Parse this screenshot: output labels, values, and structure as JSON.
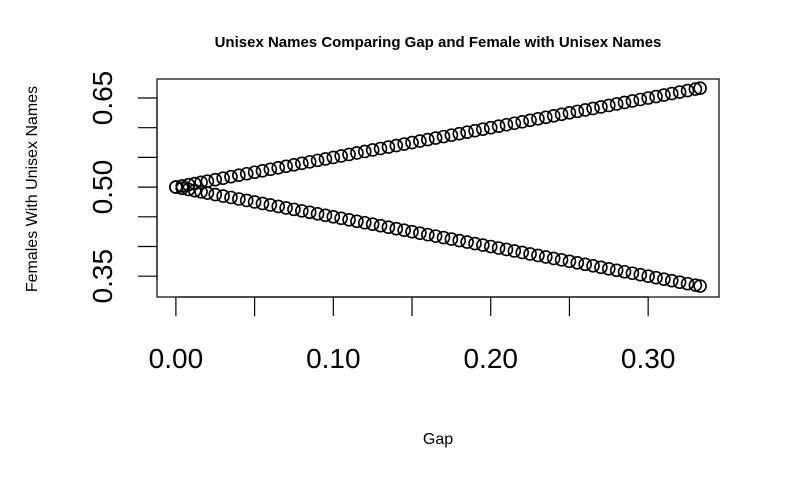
{
  "chart_data": {
    "type": "scatter",
    "title": "Unisex Names Comparing Gap and Female with Unisex Names",
    "xlabel": "Gap",
    "ylabel": "Females With Unisex Names",
    "xlim": [
      -0.012,
      0.345
    ],
    "ylim": [
      0.315,
      0.682
    ],
    "xticks": [
      0.0,
      0.05,
      0.1,
      0.15,
      0.2,
      0.25,
      0.3
    ],
    "xtick_labels": [
      "0.00",
      "",
      "0.10",
      "",
      "0.20",
      "",
      "0.30"
    ],
    "yticks": [
      0.35,
      0.4,
      0.45,
      0.5,
      0.55,
      0.6,
      0.65
    ],
    "ytick_labels": [
      "0.35",
      "",
      "",
      "0.50",
      "",
      "",
      "0.65"
    ],
    "point_shape": "open-circle",
    "grid": false,
    "series": [
      {
        "x": [
          0.0,
          0.004,
          0.008,
          0.012,
          0.016,
          0.02,
          0.025,
          0.03,
          0.035,
          0.04,
          0.045,
          0.05,
          0.055,
          0.06,
          0.065,
          0.07,
          0.075,
          0.08,
          0.085,
          0.09,
          0.095,
          0.1,
          0.105,
          0.11,
          0.115,
          0.12,
          0.125,
          0.13,
          0.135,
          0.14,
          0.145,
          0.15,
          0.155,
          0.16,
          0.165,
          0.17,
          0.175,
          0.18,
          0.185,
          0.19,
          0.195,
          0.2,
          0.205,
          0.21,
          0.215,
          0.22,
          0.225,
          0.23,
          0.235,
          0.24,
          0.245,
          0.25,
          0.255,
          0.26,
          0.265,
          0.27,
          0.275,
          0.28,
          0.285,
          0.29,
          0.295,
          0.3,
          0.305,
          0.31,
          0.315,
          0.32,
          0.325,
          0.33,
          0.333
        ],
        "y": [
          0.5,
          0.502,
          0.504,
          0.506,
          0.508,
          0.51,
          0.5125,
          0.515,
          0.5175,
          0.52,
          0.5225,
          0.525,
          0.5275,
          0.53,
          0.5325,
          0.535,
          0.5375,
          0.54,
          0.5425,
          0.545,
          0.5475,
          0.55,
          0.5525,
          0.555,
          0.5575,
          0.56,
          0.5625,
          0.565,
          0.5675,
          0.57,
          0.5725,
          0.575,
          0.5775,
          0.58,
          0.5825,
          0.585,
          0.5875,
          0.59,
          0.5925,
          0.595,
          0.5975,
          0.6,
          0.6025,
          0.605,
          0.6075,
          0.61,
          0.6125,
          0.615,
          0.6175,
          0.62,
          0.6225,
          0.625,
          0.6275,
          0.63,
          0.6325,
          0.635,
          0.6375,
          0.64,
          0.6425,
          0.645,
          0.6475,
          0.65,
          0.6525,
          0.655,
          0.6575,
          0.66,
          0.6625,
          0.665,
          0.6665
        ]
      },
      {
        "x": [
          0.0,
          0.004,
          0.008,
          0.012,
          0.016,
          0.02,
          0.025,
          0.03,
          0.035,
          0.04,
          0.045,
          0.05,
          0.055,
          0.06,
          0.065,
          0.07,
          0.075,
          0.08,
          0.085,
          0.09,
          0.095,
          0.1,
          0.105,
          0.11,
          0.115,
          0.12,
          0.125,
          0.13,
          0.135,
          0.14,
          0.145,
          0.15,
          0.155,
          0.16,
          0.165,
          0.17,
          0.175,
          0.18,
          0.185,
          0.19,
          0.195,
          0.2,
          0.205,
          0.21,
          0.215,
          0.22,
          0.225,
          0.23,
          0.235,
          0.24,
          0.245,
          0.25,
          0.255,
          0.26,
          0.265,
          0.27,
          0.275,
          0.28,
          0.285,
          0.29,
          0.295,
          0.3,
          0.305,
          0.31,
          0.315,
          0.32,
          0.325,
          0.33,
          0.333
        ],
        "y": [
          0.5,
          0.498,
          0.496,
          0.494,
          0.492,
          0.49,
          0.4875,
          0.485,
          0.4825,
          0.48,
          0.4775,
          0.475,
          0.4725,
          0.47,
          0.4675,
          0.465,
          0.4625,
          0.46,
          0.4575,
          0.455,
          0.4525,
          0.45,
          0.4475,
          0.445,
          0.4425,
          0.44,
          0.4375,
          0.435,
          0.4325,
          0.43,
          0.4275,
          0.425,
          0.4225,
          0.42,
          0.4175,
          0.415,
          0.4125,
          0.41,
          0.4075,
          0.405,
          0.4025,
          0.4,
          0.3975,
          0.395,
          0.3925,
          0.39,
          0.3875,
          0.385,
          0.3825,
          0.38,
          0.3775,
          0.375,
          0.3725,
          0.37,
          0.3675,
          0.365,
          0.3625,
          0.36,
          0.3575,
          0.355,
          0.3525,
          0.35,
          0.3475,
          0.345,
          0.3425,
          0.34,
          0.3375,
          0.335,
          0.3335
        ]
      }
    ]
  }
}
